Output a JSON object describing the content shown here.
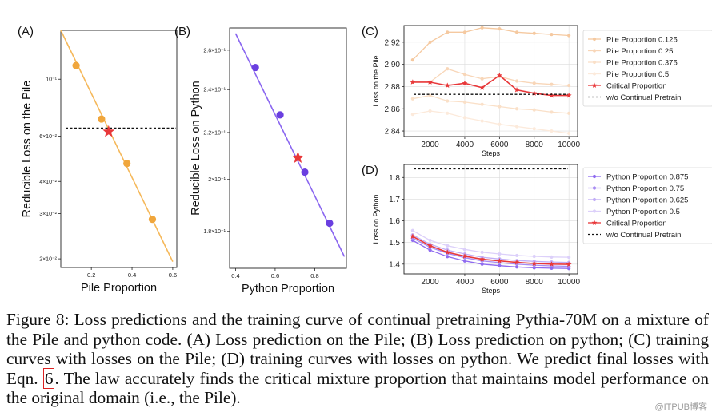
{
  "chart_data": [
    {
      "panel": "(A)",
      "type": "scatter",
      "xlabel": "Pile Proportion",
      "ylabel": "Reducible Loss on the Pile",
      "xlim": [
        0.05,
        0.62
      ],
      "ylim": [
        0.0185,
        0.155
      ],
      "y_scale": "log",
      "xticks": [
        0.2,
        0.4,
        0.6
      ],
      "xtick_labels": [
        "0.2",
        "0.4",
        "0.6"
      ],
      "yticks": [
        0.1,
        0.06,
        0.04,
        0.03,
        0.02
      ],
      "ytick_labels": [
        "10⁻¹",
        "6×10⁻²",
        "4×10⁻²",
        "3×10⁻²",
        "2×10⁻²"
      ],
      "points": {
        "x": [
          0.125,
          0.25,
          0.375,
          0.5
        ],
        "y": [
          0.113,
          0.07,
          0.047,
          0.0285
        ]
      },
      "fit_line": {
        "x": [
          0.05,
          0.6
        ],
        "y": [
          0.155,
          0.0195
        ]
      },
      "star": {
        "x": 0.285,
        "y": 0.0625
      },
      "threshold": 0.0645,
      "color": "#f0a63c",
      "line_color": "#f5b85a",
      "star_color": "#e8383a"
    },
    {
      "panel": "(B)",
      "type": "scatter",
      "xlabel": "Python Proportion",
      "ylabel": "Reducible Loss on Python",
      "xlim": [
        0.37,
        0.96
      ],
      "ylim": [
        0.167,
        0.272
      ],
      "y_scale": "log",
      "xticks": [
        0.4,
        0.6,
        0.8
      ],
      "xtick_labels": [
        "0.4",
        "0.6",
        "0.8"
      ],
      "yticks": [
        0.26,
        0.24,
        0.22,
        0.2,
        0.18
      ],
      "ytick_labels": [
        "2.6×10⁻¹",
        "2.4×10⁻¹",
        "2.2×10⁻¹",
        "2×10⁻¹",
        "1.8×10⁻¹"
      ],
      "points": {
        "x": [
          0.5,
          0.625,
          0.75,
          0.875
        ],
        "y": [
          0.251,
          0.228,
          0.203,
          0.183
        ]
      },
      "fit_line": {
        "x": [
          0.4,
          0.95
        ],
        "y": [
          0.269,
          0.171
        ]
      },
      "star": {
        "x": 0.715,
        "y": 0.209
      },
      "color": "#6a3fe0",
      "line_color": "#8a66f0",
      "star_color": "#e8383a"
    },
    {
      "panel": "(C)",
      "type": "line",
      "xlabel": "Steps",
      "ylabel": "Loss on the Pile",
      "xlim": [
        500,
        10500
      ],
      "ylim": [
        2.835,
        2.935
      ],
      "xticks": [
        2000,
        4000,
        6000,
        8000,
        10000
      ],
      "yticks": [
        2.84,
        2.86,
        2.88,
        2.9,
        2.92
      ],
      "ytick_labels": [
        "2.84",
        "2.86",
        "2.88",
        "2.90",
        "2.92"
      ],
      "x": [
        1000,
        2000,
        3000,
        4000,
        5000,
        6000,
        7000,
        8000,
        9000,
        10000
      ],
      "series": [
        {
          "name": "Pile Proportion 0.125",
          "color": "#f5c9a0",
          "values": [
            2.904,
            2.92,
            2.929,
            2.929,
            2.933,
            2.932,
            2.929,
            2.928,
            2.927,
            2.926
          ]
        },
        {
          "name": "Pile Proportion 0.25",
          "color": "#f8d6b8",
          "values": [
            2.884,
            2.884,
            2.896,
            2.891,
            2.887,
            2.889,
            2.885,
            2.883,
            2.882,
            2.881
          ]
        },
        {
          "name": "Pile Proportion 0.375",
          "color": "#fae0c8",
          "values": [
            2.869,
            2.872,
            2.867,
            2.866,
            2.864,
            2.862,
            2.86,
            2.859,
            2.857,
            2.856
          ]
        },
        {
          "name": "Pile Proportion 0.5",
          "color": "#fceadb",
          "values": [
            2.855,
            2.858,
            2.856,
            2.852,
            2.849,
            2.846,
            2.844,
            2.842,
            2.84,
            2.838
          ]
        },
        {
          "name": "Critical Proportion",
          "color": "#e8383a",
          "critical": true,
          "values": [
            2.884,
            2.884,
            2.881,
            2.883,
            2.879,
            2.89,
            2.877,
            2.874,
            2.872,
            2.872
          ]
        }
      ],
      "hline": {
        "name": "w/o Continual Pretrain",
        "value": 2.873
      }
    },
    {
      "panel": "(D)",
      "type": "line",
      "xlabel": "Steps",
      "ylabel": "Loss on Python",
      "xlim": [
        500,
        10500
      ],
      "ylim": [
        1.355,
        1.86
      ],
      "xticks": [
        2000,
        4000,
        6000,
        8000,
        10000
      ],
      "yticks": [
        1.4,
        1.5,
        1.6,
        1.7,
        1.8
      ],
      "ytick_labels": [
        "1.4",
        "1.5",
        "1.6",
        "1.7",
        "1.8"
      ],
      "x": [
        1000,
        2000,
        3000,
        4000,
        5000,
        6000,
        7000,
        8000,
        9000,
        10000
      ],
      "series": [
        {
          "name": "Python Proportion 0.875",
          "color": "#8f6bf0",
          "values": [
            1.51,
            1.465,
            1.435,
            1.415,
            1.4,
            1.393,
            1.387,
            1.383,
            1.381,
            1.38
          ]
        },
        {
          "name": "Python Proportion 0.75",
          "color": "#a88cf2",
          "values": [
            1.52,
            1.478,
            1.45,
            1.43,
            1.415,
            1.407,
            1.4,
            1.395,
            1.392,
            1.39
          ]
        },
        {
          "name": "Python Proportion 0.625",
          "color": "#c2aef6",
          "values": [
            1.535,
            1.492,
            1.465,
            1.447,
            1.432,
            1.424,
            1.417,
            1.413,
            1.41,
            1.408
          ]
        },
        {
          "name": "Python Proportion 0.5",
          "color": "#dcd0fa",
          "values": [
            1.555,
            1.51,
            1.485,
            1.468,
            1.455,
            1.447,
            1.44,
            1.436,
            1.433,
            1.432
          ]
        },
        {
          "name": "Critical Proportion",
          "color": "#e8383a",
          "critical": true,
          "values": [
            1.528,
            1.485,
            1.455,
            1.437,
            1.423,
            1.415,
            1.408,
            1.403,
            1.4,
            1.399
          ]
        }
      ],
      "hline": {
        "name": "w/o Continual Pretrain",
        "value": 1.84
      }
    }
  ],
  "caption": {
    "text": "Figure 8: Loss predictions and the training curve of continual pretraining Pythia-70M on a mixture of the Pile and python code. (A) Loss prediction on the Pile; (B) Loss prediction on python; (C) training curves with losses on the Pile; (D) training curves with losses on python. We predict final losses with Eqn. ",
    "eqn_ref": "6",
    "text_after": ". The law accurately finds the critical mixture proportion that maintains model performance on the original domain (i.e., the Pile)."
  },
  "watermark": "@ITPUB博客"
}
